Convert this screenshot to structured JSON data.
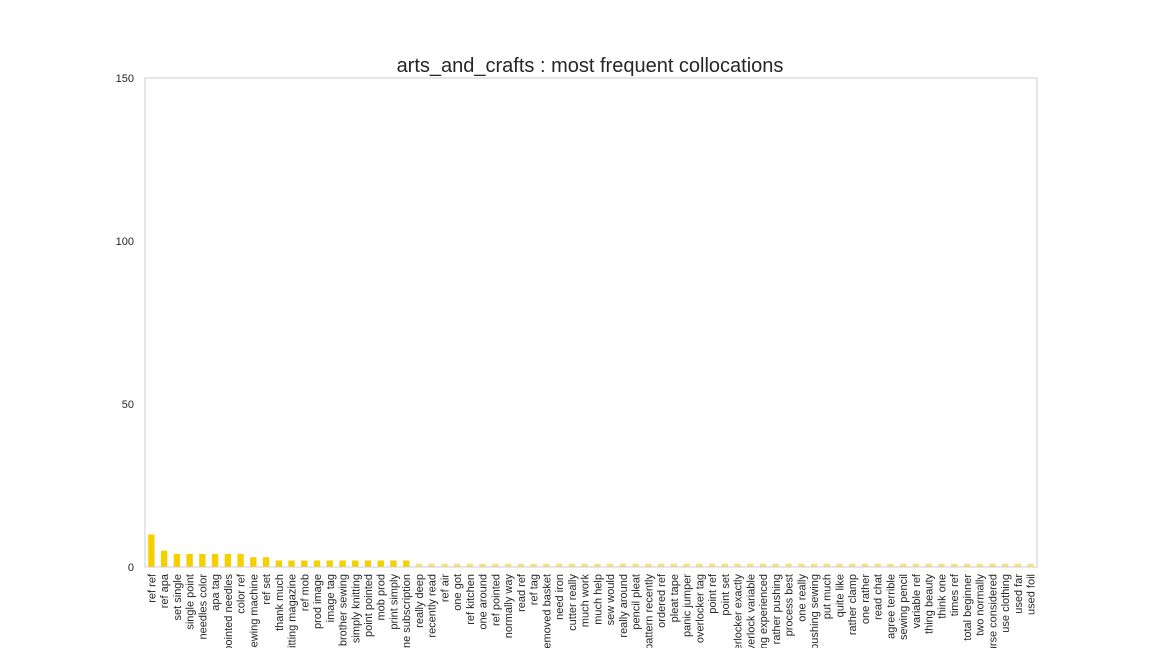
{
  "chart_data": {
    "type": "bar",
    "title": "arts_and_crafts : most frequent collocations",
    "xlabel": "",
    "ylabel": "",
    "ylim": [
      0,
      150
    ],
    "yticks": [
      0,
      50,
      100,
      150
    ],
    "grid": false,
    "colors": {
      "bar": "#f5d000",
      "bar_faded": "#f7e27a",
      "axis": "#cccccc"
    },
    "categories": [
      "ref ref",
      "ref apa",
      "set single",
      "single point",
      "needles color",
      "apa tag",
      "pointed needles",
      "color ref",
      "sewing machine",
      "ref set",
      "thank much",
      "knitting magazine",
      "ref mob",
      "prod image",
      "image tag",
      "brother sewing",
      "simply knitting",
      "point pointed",
      "mob prod",
      "print simply",
      "one subscription",
      "really deep",
      "recently read",
      "ref air",
      "one got",
      "ref kitchen",
      "one around",
      "ref pointed",
      "normally way",
      "read ref",
      "ref tag",
      "removed basket",
      "need iron",
      "cutter really",
      "much work",
      "much help",
      "sew would",
      "really around",
      "pencil pleat",
      "pattern recently",
      "ordered ref",
      "pleat tape",
      "panic jumper",
      "overlocker tag",
      "point ref",
      "point set",
      "overlocker exactly",
      "overlock variable",
      "sewing experienced",
      "rather pushing",
      "process best",
      "one really",
      "pushing sewing",
      "put much",
      "quite like",
      "rather clamp",
      "one rather",
      "read chat",
      "agree terrible",
      "sewing pencil",
      "variable ref",
      "thing beauty",
      "think one",
      "times ref",
      "total beginner",
      "two normally",
      "course considered",
      "use clothing",
      "used far",
      "used foil"
    ],
    "values": [
      10,
      5,
      4,
      4,
      4,
      4,
      4,
      4,
      3,
      3,
      2,
      2,
      2,
      2,
      2,
      2,
      2,
      2,
      2,
      2,
      2,
      1,
      1,
      1,
      1,
      1,
      1,
      1,
      1,
      1,
      1,
      1,
      1,
      1,
      1,
      1,
      1,
      1,
      1,
      1,
      1,
      1,
      1,
      1,
      1,
      1,
      1,
      1,
      1,
      1,
      1,
      1,
      1,
      1,
      1,
      1,
      1,
      1,
      1,
      1,
      1,
      1,
      1,
      1,
      1,
      1,
      1,
      1,
      1,
      1
    ]
  }
}
